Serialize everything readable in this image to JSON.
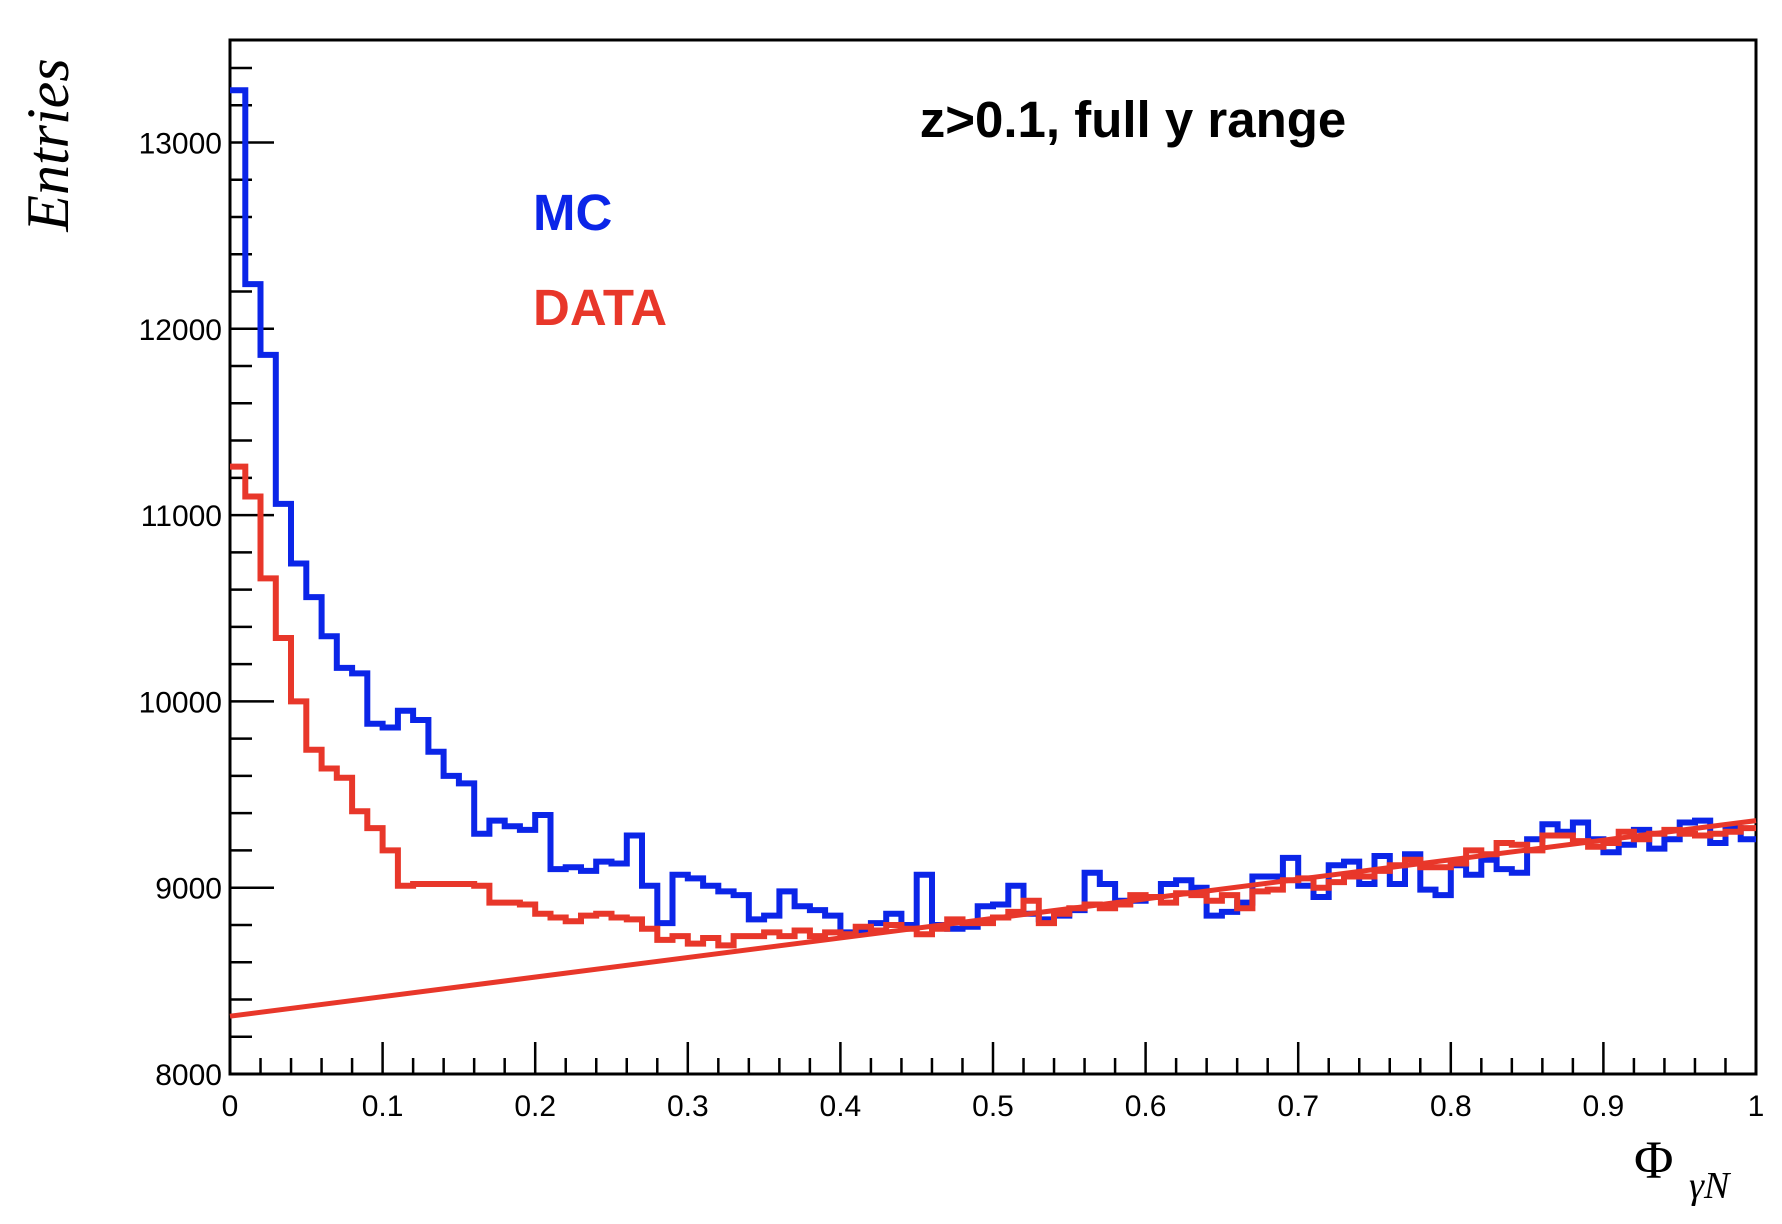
{
  "chart_data": {
    "type": "line",
    "title": "z>0.1, full y range",
    "xlabel_main": "Φ",
    "xlabel_sub": "γN",
    "ylabel": "Entries",
    "xlim": [
      0,
      1
    ],
    "ylim": [
      8000,
      13550
    ],
    "x_ticks": [
      "0",
      "0.1",
      "0.2",
      "0.3",
      "0.4",
      "0.5",
      "0.6",
      "0.7",
      "0.8",
      "0.9",
      "1"
    ],
    "y_ticks": [
      "8000",
      "9000",
      "10000",
      "11000",
      "12000",
      "13000"
    ],
    "legend": [
      {
        "label": "MC",
        "color": "#0b25e8"
      },
      {
        "label": "DATA",
        "color": "#e8372a"
      }
    ],
    "bin_width": 0.01,
    "series": [
      {
        "name": "MC",
        "style": "histogram",
        "color": "#0b25e8",
        "values": [
          13280,
          12240,
          11860,
          11060,
          10740,
          10560,
          10350,
          10180,
          10150,
          9880,
          9860,
          9950,
          9900,
          9730,
          9600,
          9560,
          9290,
          9360,
          9330,
          9310,
          9390,
          9100,
          9110,
          9090,
          9140,
          9130,
          9280,
          9010,
          8810,
          9070,
          9050,
          9010,
          8980,
          8960,
          8830,
          8850,
          8980,
          8900,
          8880,
          8850,
          8760,
          8760,
          8810,
          8860,
          8800,
          9070,
          8800,
          8780,
          8790,
          8900,
          8910,
          9010,
          8860,
          8830,
          8850,
          8880,
          9080,
          9020,
          8930,
          8930,
          8950,
          9020,
          9040,
          9000,
          8850,
          8870,
          8920,
          9060,
          9060,
          9160,
          9010,
          8950,
          9120,
          9140,
          9020,
          9170,
          9020,
          9180,
          8990,
          8960,
          9120,
          9070,
          9150,
          9100,
          9080,
          9260,
          9340,
          9300,
          9350,
          9260,
          9190,
          9230,
          9310,
          9210,
          9260,
          9350,
          9360,
          9240,
          9320,
          9260,
          9250,
          9370,
          9200,
          9220,
          9210,
          9200,
          9400,
          9230,
          9390,
          9330,
          9330,
          9360,
          9440
        ]
      },
      {
        "name": "DATA",
        "style": "histogram",
        "color": "#e8372a",
        "values": [
          11260,
          11100,
          10660,
          10340,
          10000,
          9740,
          9640,
          9590,
          9410,
          9320,
          9200,
          9010,
          9020,
          9020,
          9020,
          9020,
          9010,
          8920,
          8920,
          8910,
          8860,
          8840,
          8820,
          8850,
          8860,
          8840,
          8830,
          8780,
          8720,
          8740,
          8700,
          8730,
          8690,
          8740,
          8740,
          8760,
          8740,
          8770,
          8740,
          8760,
          8750,
          8790,
          8770,
          8800,
          8780,
          8750,
          8780,
          8830,
          8810,
          8810,
          8840,
          8870,
          8930,
          8810,
          8860,
          8890,
          8910,
          8890,
          8910,
          8960,
          8950,
          8920,
          8970,
          8960,
          8930,
          8960,
          8890,
          8980,
          8990,
          9040,
          9050,
          9000,
          9030,
          9060,
          9060,
          9090,
          9120,
          9150,
          9110,
          9110,
          9130,
          9200,
          9180,
          9240,
          9230,
          9200,
          9280,
          9280,
          9250,
          9220,
          9240,
          9300,
          9260,
          9290,
          9310,
          9290,
          9280,
          9290,
          9300,
          9320,
          9310,
          9300,
          9340,
          9360,
          9370,
          9340,
          9390,
          9410,
          9390,
          9450,
          9410,
          9430,
          9390
        ]
      },
      {
        "name": "fit",
        "style": "line",
        "color": "#e8372a",
        "x": [
          0,
          1
        ],
        "values": [
          8310,
          9360
        ]
      }
    ]
  }
}
